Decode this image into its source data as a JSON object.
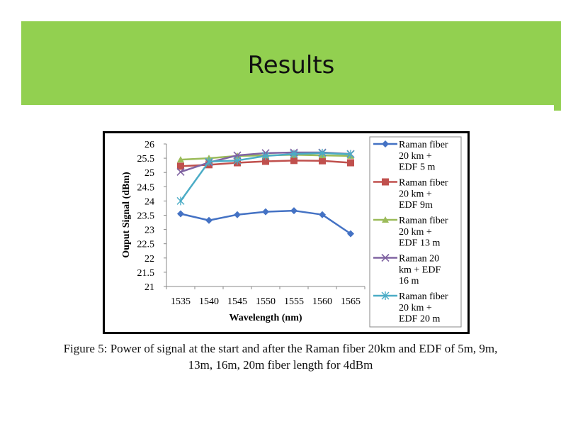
{
  "slide": {
    "title": "Results",
    "caption_line1": "Figure 5: Power of signal at the start and after the Raman fiber 20km and  EDF of 5m, 9m,",
    "caption_line2": "13m, 16m, 20m fiber length for 4dBm"
  },
  "colors": {
    "banner": "#92d050"
  },
  "chart_data": {
    "type": "line",
    "title": "",
    "xlabel": "Wavelength (nm)",
    "ylabel": "Ouput Signal (dBm)",
    "ylim": [
      21,
      26
    ],
    "y_ticks": [
      "21",
      "21.5",
      "22",
      "22.5",
      "23",
      "23.5",
      "24",
      "24.5",
      "25",
      "25.5",
      "26"
    ],
    "categories": [
      "1535",
      "1540",
      "1545",
      "1550",
      "1555",
      "1560",
      "1565"
    ],
    "grid": false,
    "legend_position": "right",
    "series": [
      {
        "name": "Raman fiber 20 km + EDF 5 m",
        "legend_lines": [
          "Raman fiber",
          "20 km +",
          "EDF 5 m"
        ],
        "color": "#4472c4",
        "marker": "diamond",
        "values": [
          23.55,
          23.32,
          23.52,
          23.62,
          23.66,
          23.52,
          22.85
        ]
      },
      {
        "name": "Raman fiber 20 km + EDF 9m",
        "legend_lines": [
          "Raman fiber",
          "20 km +",
          "EDF 9m"
        ],
        "color": "#c0504d",
        "marker": "square",
        "values": [
          25.22,
          25.27,
          25.34,
          25.39,
          25.42,
          25.41,
          25.34
        ]
      },
      {
        "name": "Raman fiber 20 km + EDF 13 m",
        "legend_lines": [
          "Raman fiber",
          "20 km +",
          "EDF 13 m"
        ],
        "color": "#9bbb59",
        "marker": "triangle",
        "values": [
          25.45,
          25.5,
          25.58,
          25.6,
          25.62,
          25.6,
          25.58
        ]
      },
      {
        "name": "Raman 20 km + EDF 16 m",
        "legend_lines": [
          "Raman 20",
          "km +  EDF",
          "16 m"
        ],
        "color": "#8064a2",
        "marker": "x",
        "values": [
          25.02,
          25.35,
          25.6,
          25.68,
          25.7,
          25.7,
          25.65
        ]
      },
      {
        "name": "Raman fiber 20 km + EDF 20 m",
        "legend_lines": [
          "Raman fiber",
          "20 km +",
          "EDF 20 m"
        ],
        "color": "#4bacc6",
        "marker": "star",
        "values": [
          24.0,
          25.38,
          25.42,
          25.58,
          25.65,
          25.68,
          25.64
        ]
      }
    ]
  }
}
